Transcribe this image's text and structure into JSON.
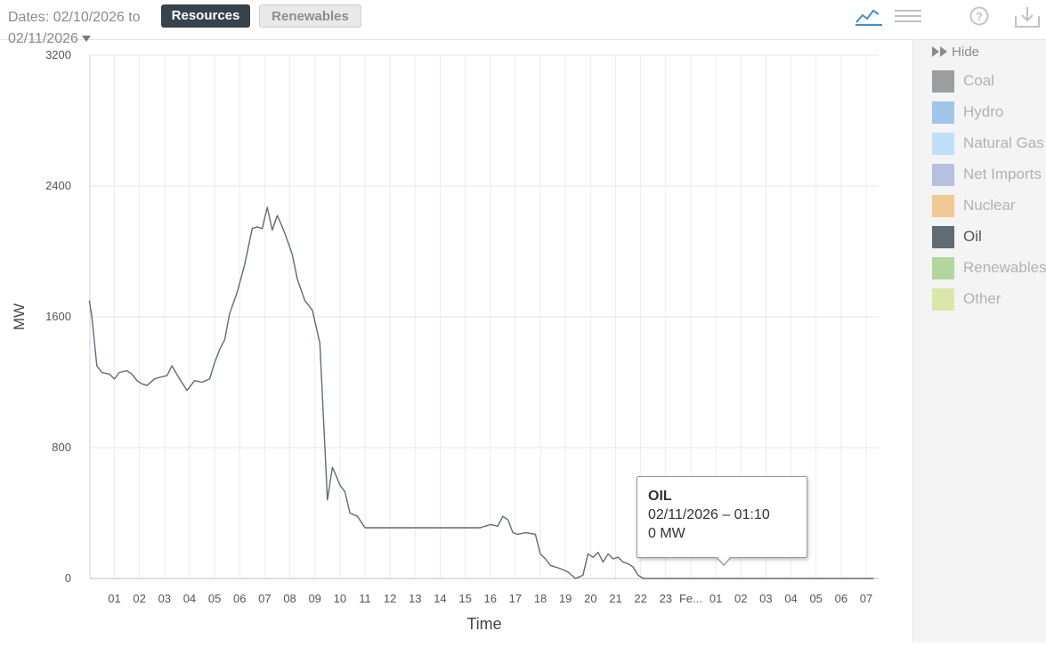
{
  "header": {
    "dates_line1": "Dates: 02/10/2026 to",
    "dates_line2": "02/11/2026",
    "tabs": [
      "Resources",
      "Renewables"
    ],
    "active_tab": "Resources",
    "tool_icons": [
      "line-chart-icon",
      "menu-icon",
      "help-icon",
      "download-icon"
    ]
  },
  "legend": {
    "hide_label": "Hide",
    "items": [
      {
        "label": "Coal",
        "color": "#9c9fa2",
        "active": false
      },
      {
        "label": "Hydro",
        "color": "#9fc5e8",
        "active": false
      },
      {
        "label": "Natural Gas",
        "color": "#bfe0f5",
        "active": false
      },
      {
        "label": "Net Imports",
        "color": "#b7c0de",
        "active": false
      },
      {
        "label": "Nuclear",
        "color": "#f1c994",
        "active": false
      },
      {
        "label": "Oil",
        "color": "#5f6c73",
        "active": true
      },
      {
        "label": "Renewables",
        "color": "#b2d69e",
        "active": false
      },
      {
        "label": "Other",
        "color": "#d9e7a8",
        "active": false
      }
    ]
  },
  "tooltip": {
    "series": "OIL",
    "time": "02/11/2026 – 01:10",
    "value": "0 MW"
  },
  "chart_data": {
    "type": "line",
    "xlabel": "Time",
    "ylabel": "MW",
    "ylim": [
      0,
      3200
    ],
    "yticks": [
      0,
      800,
      1600,
      2400,
      3200
    ],
    "x_tick_labels": [
      "01",
      "02",
      "03",
      "04",
      "05",
      "06",
      "07",
      "08",
      "09",
      "10",
      "11",
      "12",
      "13",
      "14",
      "15",
      "16",
      "17",
      "18",
      "19",
      "20",
      "21",
      "22",
      "23",
      "Fe...",
      "01",
      "02",
      "03",
      "04",
      "05",
      "06",
      "07"
    ],
    "x_unit": "hours since 02/10/2026 00:00",
    "xlim": [
      0,
      31.3
    ],
    "grid": true,
    "series": [
      {
        "name": "Oil",
        "color": "#5f6c73",
        "x": [
          0,
          0.1,
          0.3,
          0.5,
          0.8,
          1.0,
          1.2,
          1.5,
          1.7,
          1.9,
          2.1,
          2.3,
          2.6,
          2.8,
          3.1,
          3.3,
          3.6,
          3.9,
          4.2,
          4.5,
          4.8,
          5.0,
          5.2,
          5.4,
          5.6,
          5.9,
          6.2,
          6.5,
          6.7,
          6.9,
          7.1,
          7.3,
          7.5,
          7.7,
          7.9,
          8.1,
          8.3,
          8.6,
          8.9,
          9.2,
          9.5,
          9.7,
          9.9,
          10.0,
          10.2,
          10.4,
          10.7,
          11.0,
          12.0,
          13.0,
          14.0,
          15.0,
          15.6,
          16.0,
          16.3,
          16.5,
          16.7,
          16.9,
          17.1,
          17.4,
          17.8,
          18.0,
          18.2,
          18.4,
          18.8,
          19.1,
          19.4,
          19.7,
          19.9,
          20.1,
          20.3,
          20.5,
          20.7,
          20.9,
          21.1,
          21.3,
          21.5,
          21.7,
          21.9,
          22.1,
          25.0,
          28.0,
          31.3
        ],
        "y": [
          1700,
          1600,
          1300,
          1260,
          1250,
          1220,
          1260,
          1270,
          1250,
          1210,
          1190,
          1180,
          1220,
          1230,
          1240,
          1300,
          1220,
          1150,
          1210,
          1200,
          1220,
          1320,
          1400,
          1460,
          1620,
          1750,
          1920,
          2140,
          2150,
          2140,
          2270,
          2130,
          2220,
          2150,
          2070,
          1980,
          1830,
          1700,
          1640,
          1440,
          480,
          680,
          610,
          570,
          530,
          400,
          380,
          310,
          310,
          310,
          310,
          310,
          310,
          330,
          320,
          380,
          360,
          280,
          270,
          280,
          270,
          150,
          120,
          80,
          60,
          40,
          0,
          20,
          150,
          130,
          160,
          100,
          150,
          120,
          130,
          100,
          90,
          70,
          20,
          0,
          0,
          0,
          0
        ]
      }
    ]
  }
}
